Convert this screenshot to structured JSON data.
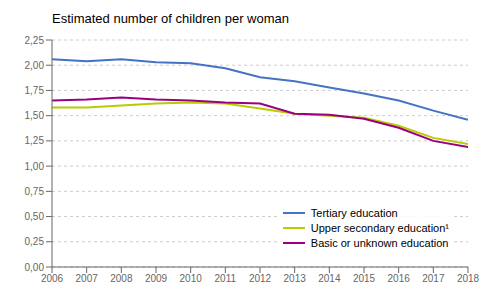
{
  "chart_data": {
    "type": "line",
    "title": "Estimated number of children per woman",
    "x": [
      2006,
      2007,
      2008,
      2009,
      2010,
      2011,
      2012,
      2013,
      2014,
      2015,
      2016,
      2017,
      2018
    ],
    "series": [
      {
        "name": "Tertiary education",
        "color": "#4472c4",
        "values": [
          2.06,
          2.04,
          2.06,
          2.03,
          2.02,
          1.97,
          1.88,
          1.84,
          1.78,
          1.72,
          1.65,
          1.55,
          1.46
        ]
      },
      {
        "name": "Upper secondary education¹",
        "color": "#b8cc00",
        "values": [
          1.58,
          1.58,
          1.6,
          1.62,
          1.63,
          1.62,
          1.57,
          1.52,
          1.5,
          1.48,
          1.4,
          1.28,
          1.22
        ]
      },
      {
        "name": "Basic or unknown education",
        "color": "#9b007f",
        "values": [
          1.65,
          1.66,
          1.68,
          1.66,
          1.65,
          1.63,
          1.62,
          1.52,
          1.51,
          1.47,
          1.38,
          1.25,
          1.19
        ]
      }
    ],
    "xlim": [
      2006,
      2018
    ],
    "xticks": [
      2006,
      2007,
      2008,
      2009,
      2010,
      2011,
      2012,
      2013,
      2014,
      2015,
      2016,
      2017,
      2018
    ],
    "ylim": [
      0.0,
      2.25
    ],
    "yticks": [
      {
        "value": 0.0,
        "label": "0,00"
      },
      {
        "value": 0.25,
        "label": "0,25"
      },
      {
        "value": 0.5,
        "label": "0,50"
      },
      {
        "value": 0.75,
        "label": "0,75"
      },
      {
        "value": 1.0,
        "label": "1,00"
      },
      {
        "value": 1.25,
        "label": "1,25"
      },
      {
        "value": 1.5,
        "label": "1,50"
      },
      {
        "value": 1.75,
        "label": "1,75"
      },
      {
        "value": 2.0,
        "label": "2,00"
      },
      {
        "value": 2.25,
        "label": "2,25"
      }
    ],
    "grid": true,
    "legend": "lower right"
  }
}
